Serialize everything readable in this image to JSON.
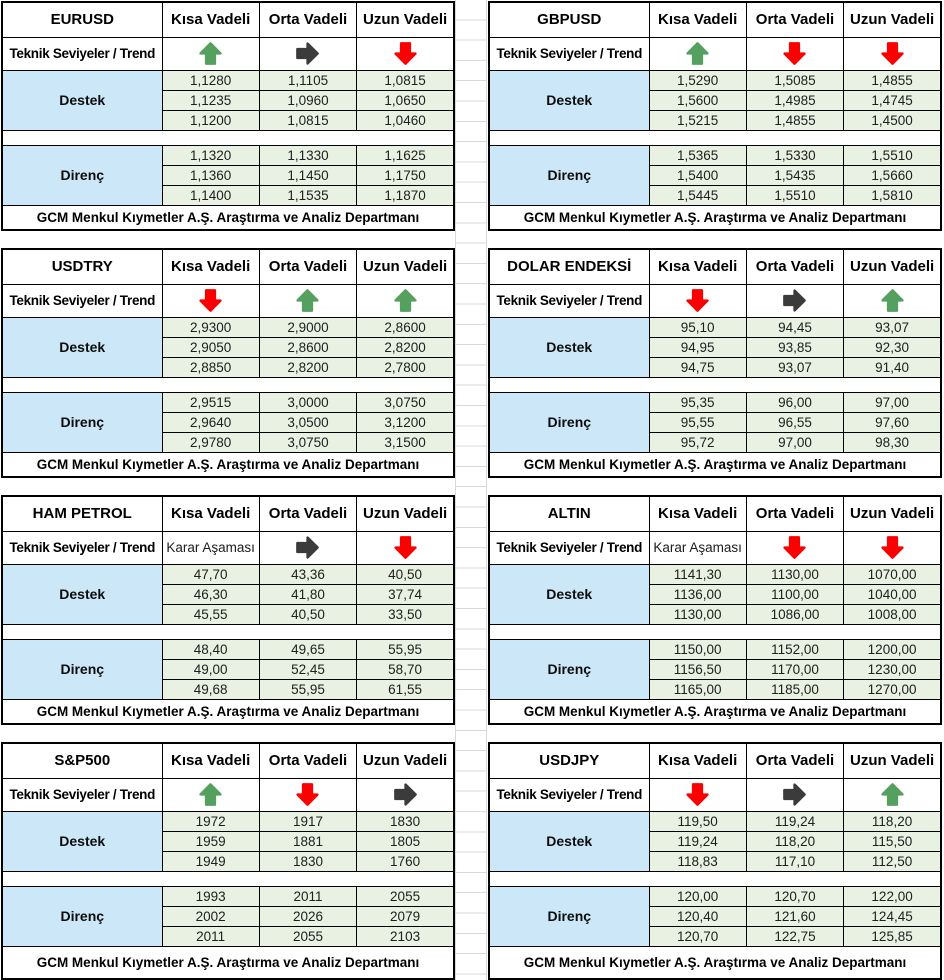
{
  "footer": "GCM Menkul Kıymetler A.Ş. Araştırma ve Analiz Departmanı",
  "labels": {
    "trend_row": "Teknik Seviyeler / Trend",
    "support": "Destek",
    "resistance": "Direnç",
    "horizons": [
      "Kısa Vadeli",
      "Orta Vadeli",
      "Uzun Vadeli"
    ]
  },
  "icons": {
    "up": "arrow-up",
    "flat": "arrow-right",
    "down": "arrow-down"
  },
  "colors": {
    "trend_up": "#55A05F",
    "trend_flat": "#3B3B3B",
    "trend_down": "#FB0000",
    "support_label_fill": "#CBE7F8",
    "value_cell_fill": "#E9F1E3",
    "table_border": "#000000",
    "gridline": "#D9D9D9"
  },
  "tables": [
    {
      "instrument": "EURUSD",
      "trends": [
        "up",
        "flat",
        "down"
      ],
      "support": [
        [
          "1,1280",
          "1,1105",
          "1,0815"
        ],
        [
          "1,1235",
          "1,0960",
          "1,0650"
        ],
        [
          "1,1200",
          "1,0815",
          "1,0460"
        ]
      ],
      "resistance": [
        [
          "1,1320",
          "1,1330",
          "1,1625"
        ],
        [
          "1,1360",
          "1,1450",
          "1,1750"
        ],
        [
          "1,1400",
          "1,1535",
          "1,1870"
        ]
      ]
    },
    {
      "instrument": "GBPUSD",
      "trends": [
        "up",
        "down",
        "down"
      ],
      "support": [
        [
          "1,5290",
          "1,5085",
          "1,4855"
        ],
        [
          "1,5600",
          "1,4985",
          "1,4745"
        ],
        [
          "1,5215",
          "1,4855",
          "1,4500"
        ]
      ],
      "resistance": [
        [
          "1,5365",
          "1,5330",
          "1,5510"
        ],
        [
          "1,5400",
          "1,5435",
          "1,5660"
        ],
        [
          "1,5445",
          "1,5510",
          "1,5810"
        ]
      ]
    },
    {
      "instrument": "USDTRY",
      "trends": [
        "down",
        "up",
        "up"
      ],
      "support": [
        [
          "2,9300",
          "2,9000",
          "2,8600"
        ],
        [
          "2,9050",
          "2,8600",
          "2,8200"
        ],
        [
          "2,8850",
          "2,8200",
          "2,7800"
        ]
      ],
      "resistance": [
        [
          "2,9515",
          "3,0000",
          "3,0750"
        ],
        [
          "2,9640",
          "3,0500",
          "3,1200"
        ],
        [
          "2,9780",
          "3,0750",
          "3,1500"
        ]
      ]
    },
    {
      "instrument": "DOLAR ENDEKSİ",
      "trends": [
        "down",
        "flat",
        "up"
      ],
      "support": [
        [
          "95,10",
          "94,45",
          "93,07"
        ],
        [
          "94,95",
          "93,85",
          "92,30"
        ],
        [
          "94,75",
          "93,07",
          "91,40"
        ]
      ],
      "resistance": [
        [
          "95,35",
          "96,00",
          "97,00"
        ],
        [
          "95,55",
          "96,55",
          "97,60"
        ],
        [
          "95,72",
          "97,00",
          "98,30"
        ]
      ]
    },
    {
      "instrument": "HAM PETROL",
      "trends": [
        "Karar Aşaması",
        "flat",
        "down"
      ],
      "support": [
        [
          "47,70",
          "43,36",
          "40,50"
        ],
        [
          "46,30",
          "41,80",
          "37,74"
        ],
        [
          "45,55",
          "40,50",
          "33,50"
        ]
      ],
      "resistance": [
        [
          "48,40",
          "49,65",
          "55,95"
        ],
        [
          "49,00",
          "52,45",
          "58,70"
        ],
        [
          "49,68",
          "55,95",
          "61,55"
        ]
      ]
    },
    {
      "instrument": "ALTIN",
      "trends": [
        "Karar Aşaması",
        "down",
        "down"
      ],
      "support": [
        [
          "1141,30",
          "1130,00",
          "1070,00"
        ],
        [
          "1136,00",
          "1100,00",
          "1040,00"
        ],
        [
          "1130,00",
          "1086,00",
          "1008,00"
        ]
      ],
      "resistance": [
        [
          "1150,00",
          "1152,00",
          "1200,00"
        ],
        [
          "1156,50",
          "1170,00",
          "1230,00"
        ],
        [
          "1165,00",
          "1185,00",
          "1270,00"
        ]
      ]
    },
    {
      "instrument": "S&P500",
      "trends": [
        "up",
        "down",
        "flat"
      ],
      "support": [
        [
          "1972",
          "1917",
          "1830"
        ],
        [
          "1959",
          "1881",
          "1805"
        ],
        [
          "1949",
          "1830",
          "1760"
        ]
      ],
      "resistance": [
        [
          "1993",
          "2011",
          "2055"
        ],
        [
          "2002",
          "2026",
          "2079"
        ],
        [
          "2011",
          "2055",
          "2103"
        ]
      ]
    },
    {
      "instrument": "USDJPY",
      "trends": [
        "down",
        "flat",
        "up"
      ],
      "support": [
        [
          "119,50",
          "119,24",
          "118,20"
        ],
        [
          "119,24",
          "118,20",
          "115,50"
        ],
        [
          "118,83",
          "117,10",
          "112,50"
        ]
      ],
      "resistance": [
        [
          "120,00",
          "120,70",
          "122,00"
        ],
        [
          "120,40",
          "121,60",
          "124,45"
        ],
        [
          "120,70",
          "122,75",
          "125,85"
        ]
      ]
    }
  ]
}
